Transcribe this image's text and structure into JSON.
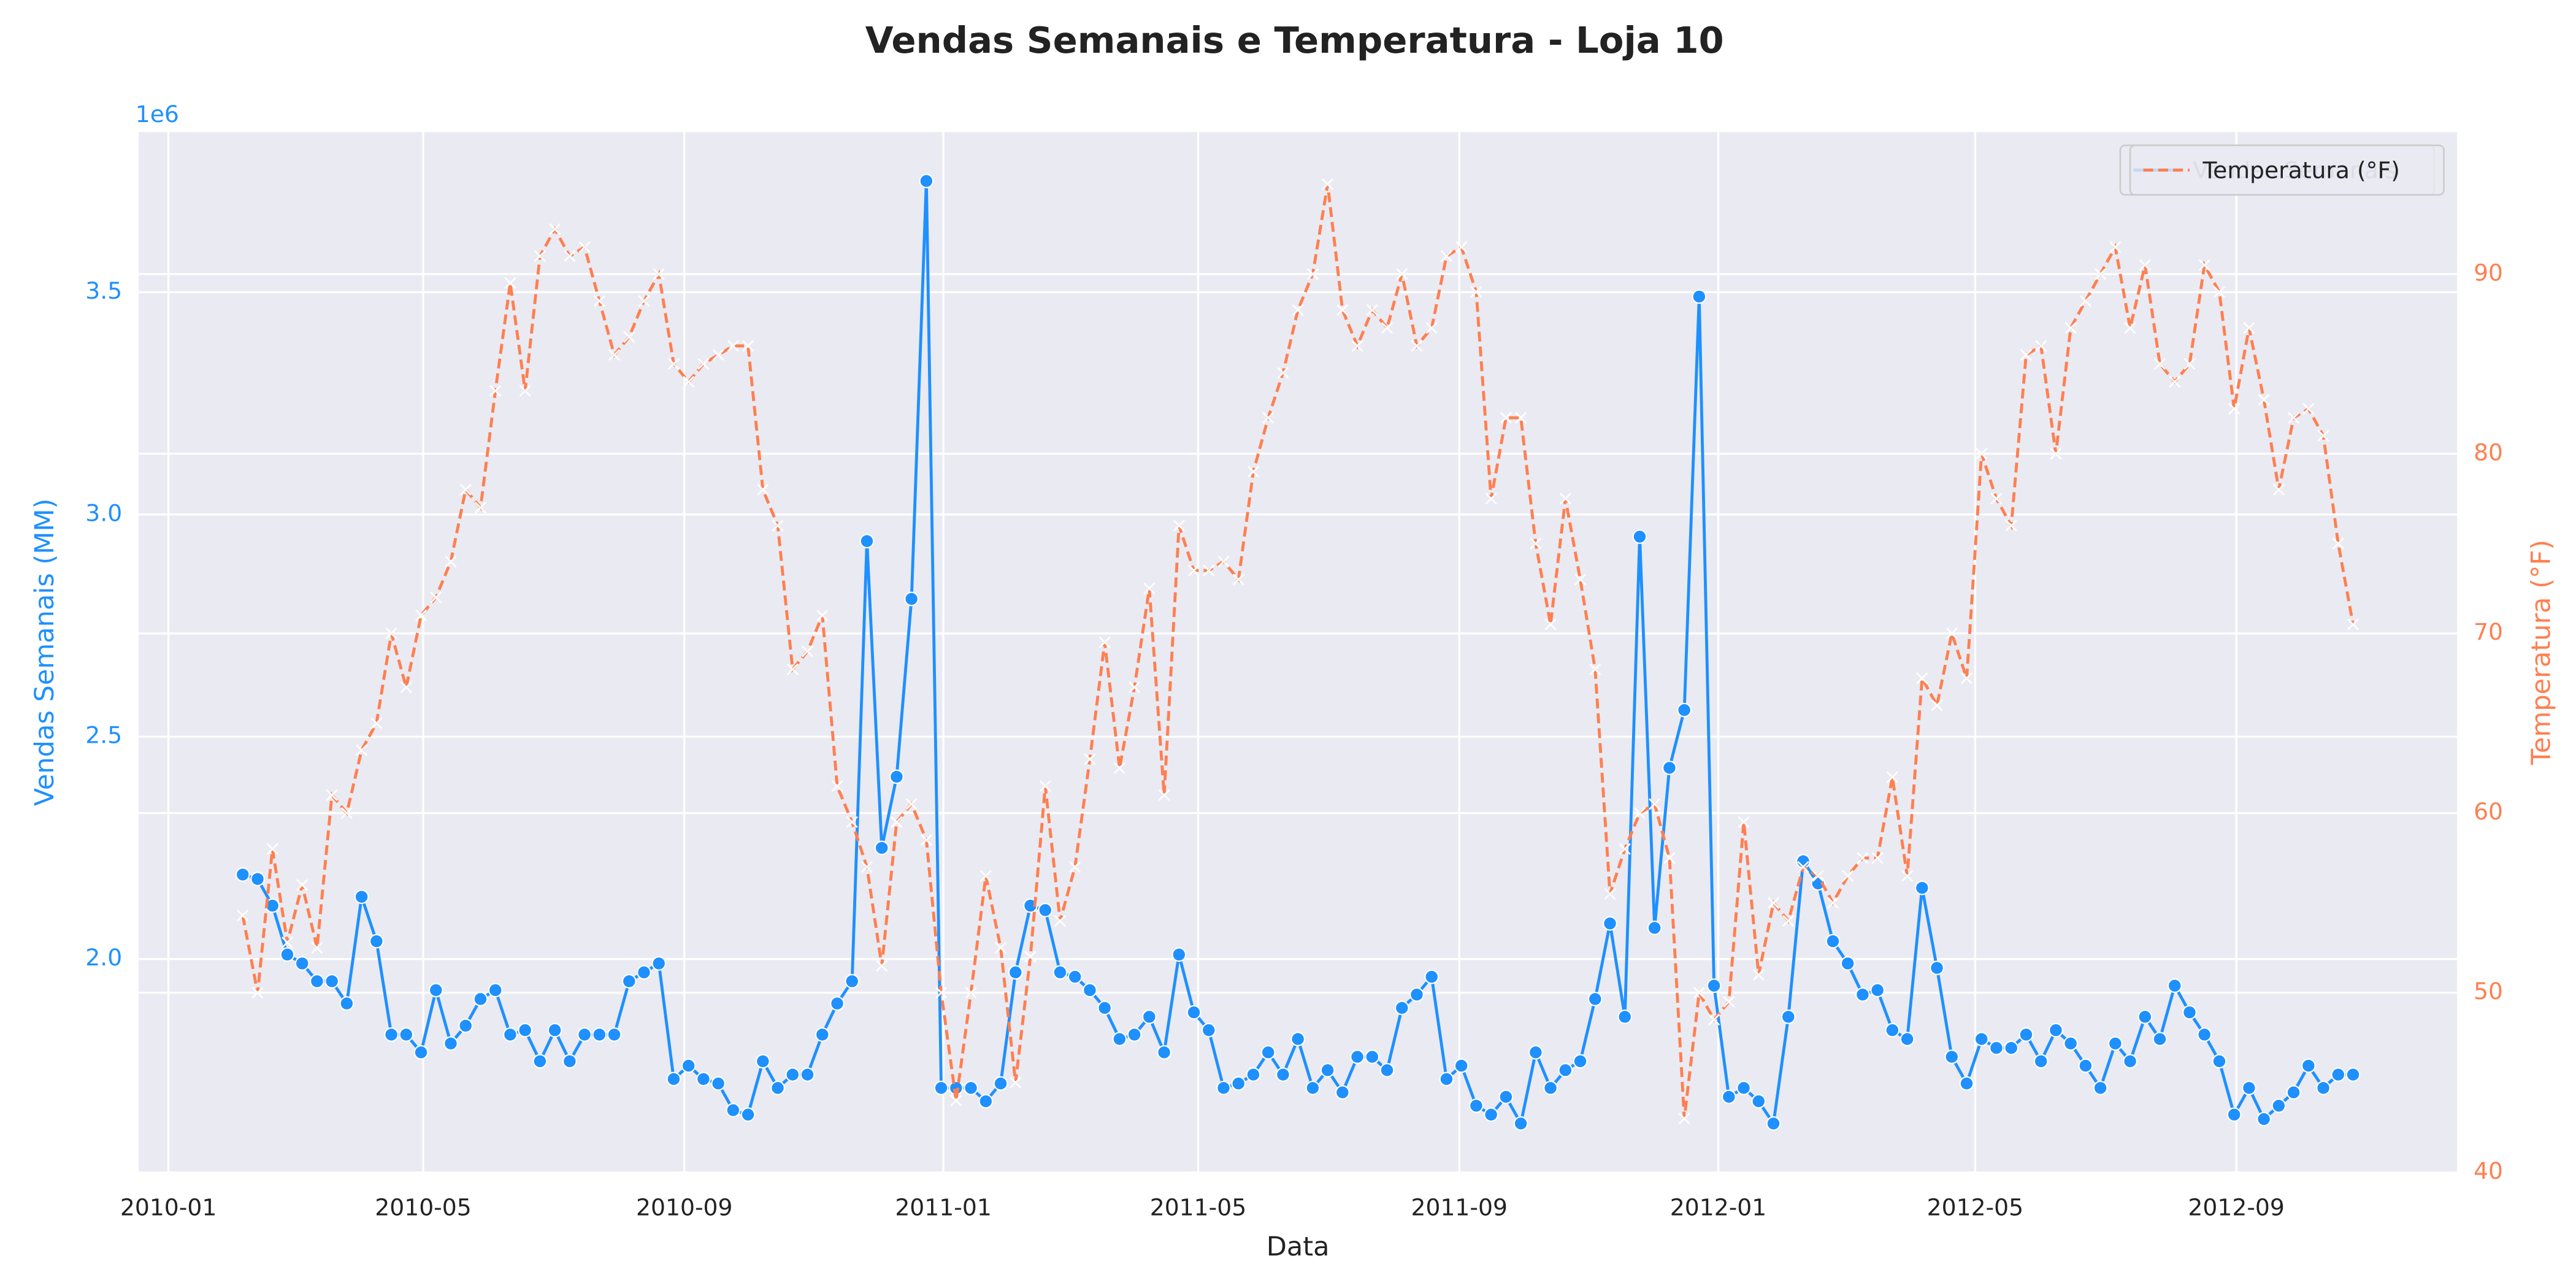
{
  "chart_data": {
    "type": "line",
    "title": "Vendas Semanais e Temperatura - Loja 10",
    "xlabel": "Data",
    "ylabel": "Vendas Semanais (MM)",
    "y2label": "Temperatura (°F)",
    "y_offset_label": "1e6",
    "grid": true,
    "legend": "upper right",
    "xlim": [
      "2009-12-18",
      "2012-12-14"
    ],
    "xticks": [
      "2010-01",
      "2010-05",
      "2010-09",
      "2011-01",
      "2011-05",
      "2011-09",
      "2012-01",
      "2012-05",
      "2012-09"
    ],
    "ylim": [
      1.52,
      3.86
    ],
    "yticks": [
      {
        "value": 2,
        "label": "2.0"
      },
      {
        "value": 2.5,
        "label": "2.5"
      },
      {
        "value": 3,
        "label": "3.0"
      },
      {
        "value": 3.5,
        "label": "3.5"
      }
    ],
    "y2lim": [
      40,
      97.9
    ],
    "y2ticks": [
      40,
      50,
      60,
      70,
      80,
      90
    ],
    "x": [
      "2010-02-05",
      "2010-02-12",
      "2010-02-19",
      "2010-02-26",
      "2010-03-05",
      "2010-03-12",
      "2010-03-19",
      "2010-03-26",
      "2010-04-02",
      "2010-04-09",
      "2010-04-16",
      "2010-04-23",
      "2010-04-30",
      "2010-05-07",
      "2010-05-14",
      "2010-05-21",
      "2010-05-28",
      "2010-06-04",
      "2010-06-11",
      "2010-06-18",
      "2010-06-25",
      "2010-07-02",
      "2010-07-09",
      "2010-07-16",
      "2010-07-23",
      "2010-07-30",
      "2010-08-06",
      "2010-08-13",
      "2010-08-20",
      "2010-08-27",
      "2010-09-03",
      "2010-09-10",
      "2010-09-17",
      "2010-09-24",
      "2010-10-01",
      "2010-10-08",
      "2010-10-15",
      "2010-10-22",
      "2010-10-29",
      "2010-11-05",
      "2010-11-12",
      "2010-11-19",
      "2010-11-26",
      "2010-12-03",
      "2010-12-10",
      "2010-12-17",
      "2010-12-24",
      "2010-12-31",
      "2011-01-07",
      "2011-01-14",
      "2011-01-21",
      "2011-01-28",
      "2011-02-04",
      "2011-02-11",
      "2011-02-18",
      "2011-02-25",
      "2011-03-04",
      "2011-03-11",
      "2011-03-18",
      "2011-03-25",
      "2011-04-01",
      "2011-04-08",
      "2011-04-15",
      "2011-04-22",
      "2011-04-29",
      "2011-05-06",
      "2011-05-13",
      "2011-05-20",
      "2011-05-27",
      "2011-06-03",
      "2011-06-10",
      "2011-06-17",
      "2011-06-24",
      "2011-07-01",
      "2011-07-08",
      "2011-07-15",
      "2011-07-22",
      "2011-07-29",
      "2011-08-05",
      "2011-08-12",
      "2011-08-19",
      "2011-08-26",
      "2011-09-02",
      "2011-09-09",
      "2011-09-16",
      "2011-09-23",
      "2011-09-30",
      "2011-10-07",
      "2011-10-14",
      "2011-10-21",
      "2011-10-28",
      "2011-11-04",
      "2011-11-11",
      "2011-11-18",
      "2011-11-25",
      "2011-12-02",
      "2011-12-09",
      "2011-12-16",
      "2011-12-23",
      "2011-12-30",
      "2012-01-06",
      "2012-01-13",
      "2012-01-20",
      "2012-01-27",
      "2012-02-03",
      "2012-02-10",
      "2012-02-17",
      "2012-02-24",
      "2012-03-02",
      "2012-03-09",
      "2012-03-16",
      "2012-03-23",
      "2012-03-30",
      "2012-04-06",
      "2012-04-13",
      "2012-04-20",
      "2012-04-27",
      "2012-05-04",
      "2012-05-11",
      "2012-05-18",
      "2012-05-25",
      "2012-06-01",
      "2012-06-08",
      "2012-06-15",
      "2012-06-22",
      "2012-06-29",
      "2012-07-06",
      "2012-07-13",
      "2012-07-20",
      "2012-07-27",
      "2012-08-03",
      "2012-08-10",
      "2012-08-17",
      "2012-08-24",
      "2012-08-31",
      "2012-09-07",
      "2012-09-14",
      "2012-09-21",
      "2012-09-28",
      "2012-10-05",
      "2012-10-12",
      "2012-10-19",
      "2012-10-26"
    ],
    "series": [
      {
        "name": "Vendas Semanais",
        "color": "#1e90ff",
        "values": [
          2.19,
          2.18,
          2.12,
          2.01,
          1.99,
          1.95,
          1.95,
          1.9,
          2.14,
          2.04,
          1.83,
          1.83,
          1.79,
          1.93,
          1.81,
          1.85,
          1.91,
          1.93,
          1.83,
          1.84,
          1.77,
          1.84,
          1.77,
          1.83,
          1.83,
          1.83,
          1.95,
          1.97,
          1.99,
          1.73,
          1.76,
          1.73,
          1.72,
          1.66,
          1.65,
          1.77,
          1.71,
          1.74,
          1.74,
          1.83,
          1.9,
          1.95,
          2.94,
          2.25,
          2.41,
          2.81,
          3.75,
          1.71,
          1.71,
          1.71,
          1.68,
          1.72,
          1.97,
          2.12,
          2.11,
          1.97,
          1.96,
          1.93,
          1.89,
          1.82,
          1.83,
          1.87,
          1.79,
          2.01,
          1.88,
          1.84,
          1.71,
          1.72,
          1.74,
          1.79,
          1.74,
          1.82,
          1.71,
          1.75,
          1.7,
          1.78,
          1.78,
          1.75,
          1.89,
          1.92,
          1.96,
          1.73,
          1.76,
          1.67,
          1.65,
          1.69,
          1.63,
          1.79,
          1.71,
          1.75,
          1.77,
          1.91,
          2.08,
          1.87,
          2.95,
          2.07,
          2.43,
          2.56,
          3.49,
          1.94,
          1.69,
          1.71,
          1.68,
          1.63,
          1.87,
          2.22,
          2.17,
          2.04,
          1.99,
          1.92,
          1.93,
          1.84,
          1.82,
          2.16,
          1.98,
          1.78,
          1.72,
          1.82,
          1.8,
          1.8,
          1.83,
          1.77,
          1.84,
          1.81,
          1.76,
          1.71,
          1.81,
          1.77,
          1.87,
          1.82,
          1.94,
          1.88,
          1.83,
          1.77,
          1.65,
          1.71,
          1.64,
          1.67,
          1.7,
          1.76,
          1.71,
          1.74,
          1.74
        ]
      },
      {
        "name": "Temperatura (°F)",
        "color": "#ff7f50",
        "axis": "y2",
        "values": [
          54.3,
          50,
          58,
          52.8,
          56,
          52.5,
          61,
          60,
          63.5,
          65,
          70,
          67,
          71,
          72,
          74,
          78,
          77,
          83.5,
          89.5,
          83.5,
          91,
          92.5,
          91,
          91.5,
          88.5,
          85.5,
          86.5,
          88.5,
          90,
          85,
          84,
          85,
          85.5,
          86,
          86,
          78,
          76,
          68,
          69,
          71,
          61.5,
          59.5,
          57,
          51.5,
          59.5,
          60.5,
          58.5,
          50,
          44,
          50,
          56.5,
          52.5,
          45,
          52,
          61.5,
          54,
          57,
          63,
          69.5,
          62.5,
          67,
          72.5,
          61,
          76,
          73.5,
          73.5,
          74,
          73,
          79,
          82,
          84.5,
          88,
          90,
          95,
          88,
          86,
          88,
          87,
          90,
          86,
          87,
          91,
          91.5,
          89,
          77.5,
          82,
          82,
          75,
          70.5,
          77.5,
          73,
          68,
          55.5,
          58,
          60,
          60.5,
          57.5,
          43,
          50,
          48.5,
          49.5,
          59.5,
          51,
          55,
          54,
          57,
          56.5,
          55,
          56.5,
          57.5,
          57.5,
          62,
          56.5,
          67.5,
          66,
          70,
          67.5,
          80,
          77.5,
          76,
          85.5,
          86,
          80,
          87,
          88.5,
          90,
          91.5,
          87,
          90.5,
          85,
          84,
          85,
          90.5,
          89,
          82.5,
          87,
          83,
          78,
          82,
          82.5,
          81,
          75,
          70.5
        ]
      }
    ]
  }
}
